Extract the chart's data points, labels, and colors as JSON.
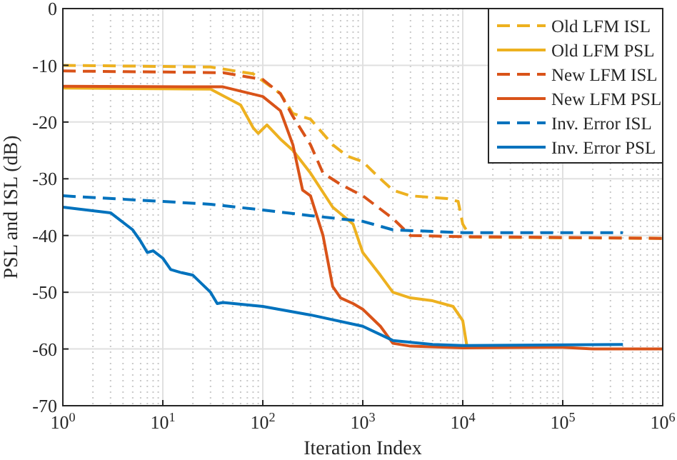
{
  "chart_data": {
    "type": "line",
    "xlabel": "Iteration Index",
    "ylabel": "PSL and ISL (dB)",
    "log": "x",
    "xlim": [
      1,
      1000000
    ],
    "ylim": [
      -70,
      0
    ],
    "xticks": [
      {
        "value": 1,
        "label": "10$^{0}$"
      },
      {
        "value": 10,
        "label": "10$^{1}$"
      },
      {
        "value": 100,
        "label": "10$^{2}$"
      },
      {
        "value": 1000,
        "label": "10$^{3}$"
      },
      {
        "value": 10000,
        "label": "10$^{4}$"
      },
      {
        "value": 100000,
        "label": "10$^{5}$"
      },
      {
        "value": 1000000,
        "label": "10$^{6}$"
      }
    ],
    "yticks": [
      -70,
      -60,
      -50,
      -40,
      -30,
      -20,
      -10,
      0
    ],
    "grid": true,
    "legend": "top right",
    "series": [
      {
        "name": "Old LFM ISL",
        "color": "#edb120",
        "line_style": "dashed",
        "x": [
          1,
          30,
          80,
          150,
          200,
          300,
          500,
          700,
          1000,
          1500,
          2000,
          3000,
          7000,
          9000,
          10000,
          12000,
          100000,
          1000000
        ],
        "values": [
          -10,
          -10.3,
          -11.5,
          -15,
          -18.5,
          -19.5,
          -24,
          -26,
          -27,
          -30,
          -32,
          -33,
          -33.5,
          -34,
          -38,
          -40.3,
          -40.4,
          -40.5
        ]
      },
      {
        "name": "Old LFM PSL",
        "color": "#edb120",
        "line_style": "solid",
        "x": [
          1,
          30,
          60,
          80,
          90,
          110,
          150,
          200,
          300,
          500,
          800,
          1000,
          1500,
          2000,
          3000,
          5000,
          8000,
          10000,
          11000
        ],
        "values": [
          -14,
          -14.2,
          -17,
          -21,
          -22,
          -20.5,
          -23,
          -25,
          -29,
          -35,
          -38,
          -43,
          -47,
          -50,
          -51,
          -51.5,
          -52.5,
          -55,
          -59.5
        ]
      },
      {
        "name": "New LFM ISL",
        "color": "#d95319",
        "line_style": "dashed",
        "x": [
          1,
          40,
          100,
          150,
          200,
          300,
          400,
          600,
          1000,
          2000,
          3000,
          10000,
          1000000
        ],
        "values": [
          -11,
          -11.3,
          -12.5,
          -15,
          -19,
          -24,
          -29,
          -31,
          -33,
          -37,
          -40,
          -40.2,
          -40.5
        ]
      },
      {
        "name": "New LFM PSL",
        "color": "#d95319",
        "line_style": "solid",
        "x": [
          1,
          40,
          100,
          150,
          200,
          250,
          300,
          400,
          500,
          600,
          800,
          1000,
          1500,
          2000,
          3000,
          10000,
          100000,
          200000,
          1000000
        ],
        "values": [
          -13.7,
          -13.8,
          -15.5,
          -18,
          -24,
          -32,
          -33,
          -40,
          -49,
          -51,
          -52,
          -53,
          -56,
          -59,
          -59.5,
          -59.8,
          -59.7,
          -60,
          -60
        ]
      },
      {
        "name": "Inv. Error ISL",
        "color": "#0072bd",
        "line_style": "dashed",
        "x": [
          1,
          10,
          30,
          100,
          300,
          1000,
          2000,
          10000,
          400000
        ],
        "values": [
          -33,
          -34,
          -34.5,
          -35.5,
          -36.5,
          -37.5,
          -39,
          -39.5,
          -39.5
        ]
      },
      {
        "name": "Inv. Error PSL",
        "color": "#0072bd",
        "line_style": "solid",
        "x": [
          1,
          3,
          5,
          6,
          7,
          8,
          10,
          12,
          15,
          20,
          30,
          35,
          40,
          100,
          300,
          1000,
          2000,
          5000,
          10000,
          400000
        ],
        "values": [
          -35,
          -36,
          -39,
          -41,
          -43,
          -42.7,
          -44,
          -46,
          -46.5,
          -47,
          -50,
          -52,
          -51.8,
          -52.5,
          -54,
          -56,
          -58.5,
          -59.2,
          -59.4,
          -59.2
        ]
      }
    ]
  }
}
